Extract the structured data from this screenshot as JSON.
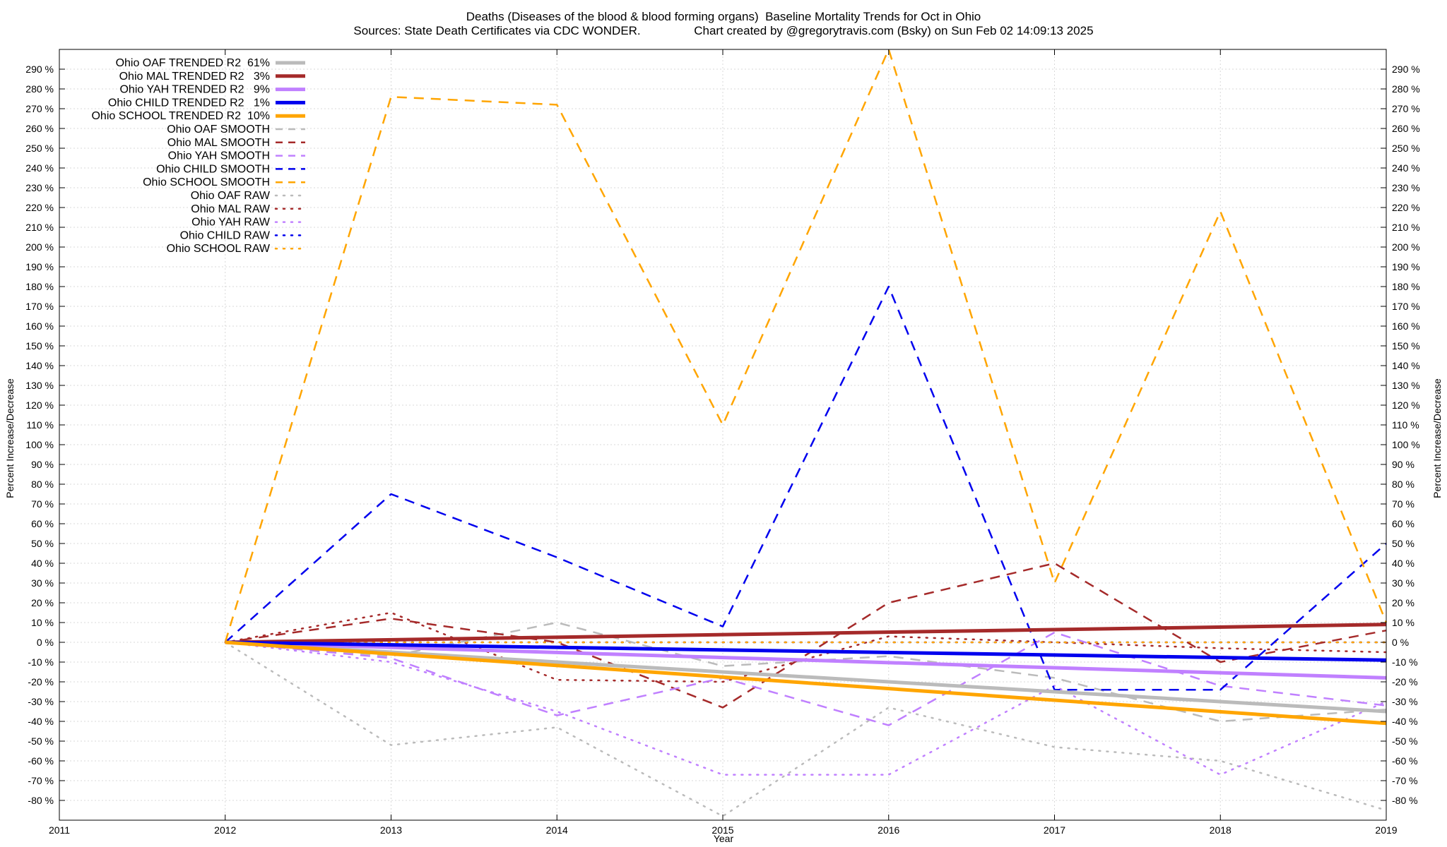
{
  "title_line1": "Deaths (Diseases of the blood & blood forming organs)  Baseline Mortality Trends for Oct in Ohio",
  "title_line2": "Sources: State Death Certificates via CDC WONDER.                Chart created by @gregorytravis.com (Bsky) on Sun Feb 02 14:09:13 2025",
  "chart_data": {
    "type": "line",
    "xlabel": "Year",
    "ylabel": "Percent Increase/Decrease",
    "y2label": "Percent Increase/Decrease",
    "xlim": [
      2011,
      2019
    ],
    "ylim": [
      -90,
      300
    ],
    "x_ticks": [
      "2011",
      "2012",
      "2013",
      "2014",
      "2015",
      "2016",
      "2017",
      "2018",
      "2019"
    ],
    "y_ticks": [
      "290 %",
      "280 %",
      "270 %",
      "260 %",
      "250 %",
      "240 %",
      "230 %",
      "220 %",
      "210 %",
      "200 %",
      "190 %",
      "180 %",
      "170 %",
      "160 %",
      "150 %",
      "140 %",
      "130 %",
      "120 %",
      "110 %",
      "100 %",
      "90 %",
      "80 %",
      "70 %",
      "60 %",
      "50 %",
      "40 %",
      "30 %",
      "20 %",
      "10 %",
      "0 %",
      "-10 %",
      "-20 %",
      "-30 %",
      "-40 %",
      "-50 %",
      "-60 %",
      "-70 %",
      "-80 %"
    ],
    "grid": true,
    "legend_position": "top-left",
    "series": [
      {
        "name": "Ohio OAF TRENDED R2  61%",
        "style": "solid",
        "color": "#bbbbbb",
        "x": [
          2012,
          2019
        ],
        "y": [
          0,
          -35
        ]
      },
      {
        "name": "Ohio MAL TRENDED R2   3%",
        "style": "solid",
        "color": "#a52a2a",
        "x": [
          2012,
          2019
        ],
        "y": [
          0,
          9
        ]
      },
      {
        "name": "Ohio YAH TRENDED R2   9%",
        "style": "solid",
        "color": "#c080ff",
        "x": [
          2012,
          2019
        ],
        "y": [
          0,
          -18
        ]
      },
      {
        "name": "Ohio CHILD TRENDED R2   1%",
        "style": "solid",
        "color": "#0000ee",
        "x": [
          2012,
          2019
        ],
        "y": [
          0,
          -9
        ]
      },
      {
        "name": "Ohio SCHOOL TRENDED R2  10%",
        "style": "solid",
        "color": "#ffa500",
        "x": [
          2012,
          2019
        ],
        "y": [
          0,
          -41
        ]
      },
      {
        "name": "Ohio OAF SMOOTH",
        "style": "dashed",
        "color": "#bbbbbb",
        "x": [
          2012,
          2013,
          2014,
          2015,
          2016,
          2017,
          2018,
          2019
        ],
        "y": [
          0,
          -7,
          10,
          -12,
          -7,
          -18,
          -40,
          -34
        ]
      },
      {
        "name": "Ohio MAL SMOOTH",
        "style": "dashed",
        "color": "#a52a2a",
        "x": [
          2012,
          2013,
          2014,
          2015,
          2016,
          2017,
          2018,
          2019
        ],
        "y": [
          0,
          12,
          0,
          -33,
          20,
          40,
          -10,
          6
        ]
      },
      {
        "name": "Ohio YAH SMOOTH",
        "style": "dashed",
        "color": "#c080ff",
        "x": [
          2012,
          2013,
          2014,
          2015,
          2016,
          2017,
          2018,
          2019
        ],
        "y": [
          0,
          -8,
          -37,
          -18,
          -42,
          5,
          -22,
          -32
        ]
      },
      {
        "name": "Ohio CHILD SMOOTH",
        "style": "dashed",
        "color": "#0000ee",
        "x": [
          2012,
          2013,
          2014,
          2015,
          2016,
          2017,
          2018,
          2019
        ],
        "y": [
          0,
          75,
          43,
          8,
          180,
          -24,
          -24,
          50
        ]
      },
      {
        "name": "Ohio SCHOOL SMOOTH",
        "style": "dashed",
        "color": "#ffa500",
        "x": [
          2012,
          2013,
          2014,
          2015,
          2016,
          2017,
          2018,
          2019
        ],
        "y": [
          0,
          276,
          272,
          110,
          300,
          30,
          218,
          10
        ]
      },
      {
        "name": "Ohio OAF RAW",
        "style": "dotted",
        "color": "#bbbbbb",
        "x": [
          2012,
          2013,
          2014,
          2015,
          2016,
          2017,
          2018,
          2019
        ],
        "y": [
          0,
          -52,
          -43,
          -88,
          -33,
          -53,
          -60,
          -85
        ]
      },
      {
        "name": "Ohio MAL RAW",
        "style": "dotted",
        "color": "#a52a2a",
        "x": [
          2012,
          2013,
          2014,
          2015,
          2016,
          2017,
          2018,
          2019
        ],
        "y": [
          0,
          15,
          -19,
          -20,
          3,
          0,
          -3,
          -5
        ]
      },
      {
        "name": "Ohio YAH RAW",
        "style": "dotted",
        "color": "#c080ff",
        "x": [
          2012,
          2013,
          2014,
          2015,
          2016,
          2017,
          2018,
          2019
        ],
        "y": [
          0,
          -10,
          -35,
          -67,
          -67,
          -22,
          -67,
          -30
        ]
      },
      {
        "name": "Ohio CHILD RAW",
        "style": "dotted",
        "color": "#0000ee",
        "x": [
          2012,
          2013,
          2014,
          2015,
          2016,
          2017,
          2018,
          2019
        ],
        "y": [
          0,
          0,
          0,
          0,
          0,
          0,
          0,
          0
        ]
      },
      {
        "name": "Ohio SCHOOL RAW",
        "style": "dotted",
        "color": "#ffa500",
        "x": [
          2012,
          2013,
          2014,
          2015,
          2016,
          2017,
          2018,
          2019
        ],
        "y": [
          0,
          0,
          0,
          0,
          0,
          0,
          0,
          0
        ]
      }
    ]
  }
}
